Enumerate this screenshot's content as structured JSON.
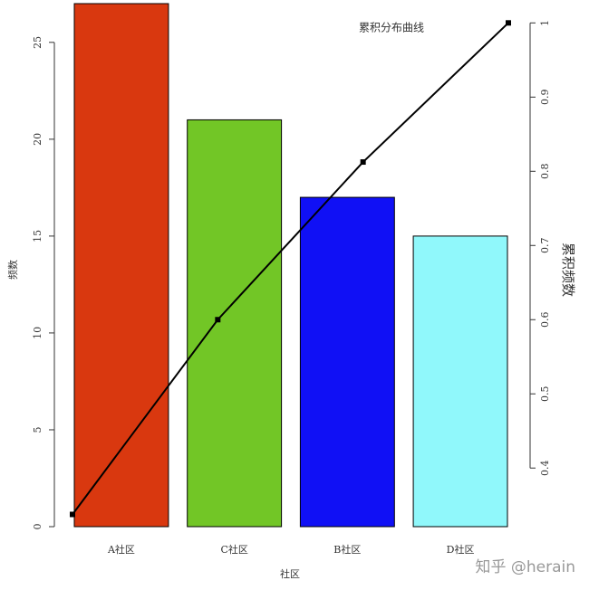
{
  "chart_data": {
    "type": "pareto",
    "title": "累积分布曲线",
    "xlabel": "社区",
    "ylabel": "频数",
    "y2label": "累积频数",
    "categories": [
      "A社区",
      "C社区",
      "B社区",
      "D社区"
    ],
    "values": [
      27,
      21,
      17,
      15
    ],
    "colors": [
      "#d9380f",
      "#72c626",
      "#1010f5",
      "#90f8fb"
    ],
    "series": [
      {
        "axis": "y2",
        "color": "#000000",
        "values": [
          0.3375,
          0.6,
          0.8125,
          1.0
        ]
      }
    ],
    "ylim": [
      0,
      27
    ],
    "yticks": [
      0,
      5,
      10,
      15,
      20,
      25
    ],
    "y2lim": [
      0.321,
      1.026
    ],
    "y2ticks": [
      0.4,
      0.5,
      0.6,
      0.7,
      0.8,
      0.9,
      1.0
    ],
    "watermark": "知乎 @herain"
  }
}
